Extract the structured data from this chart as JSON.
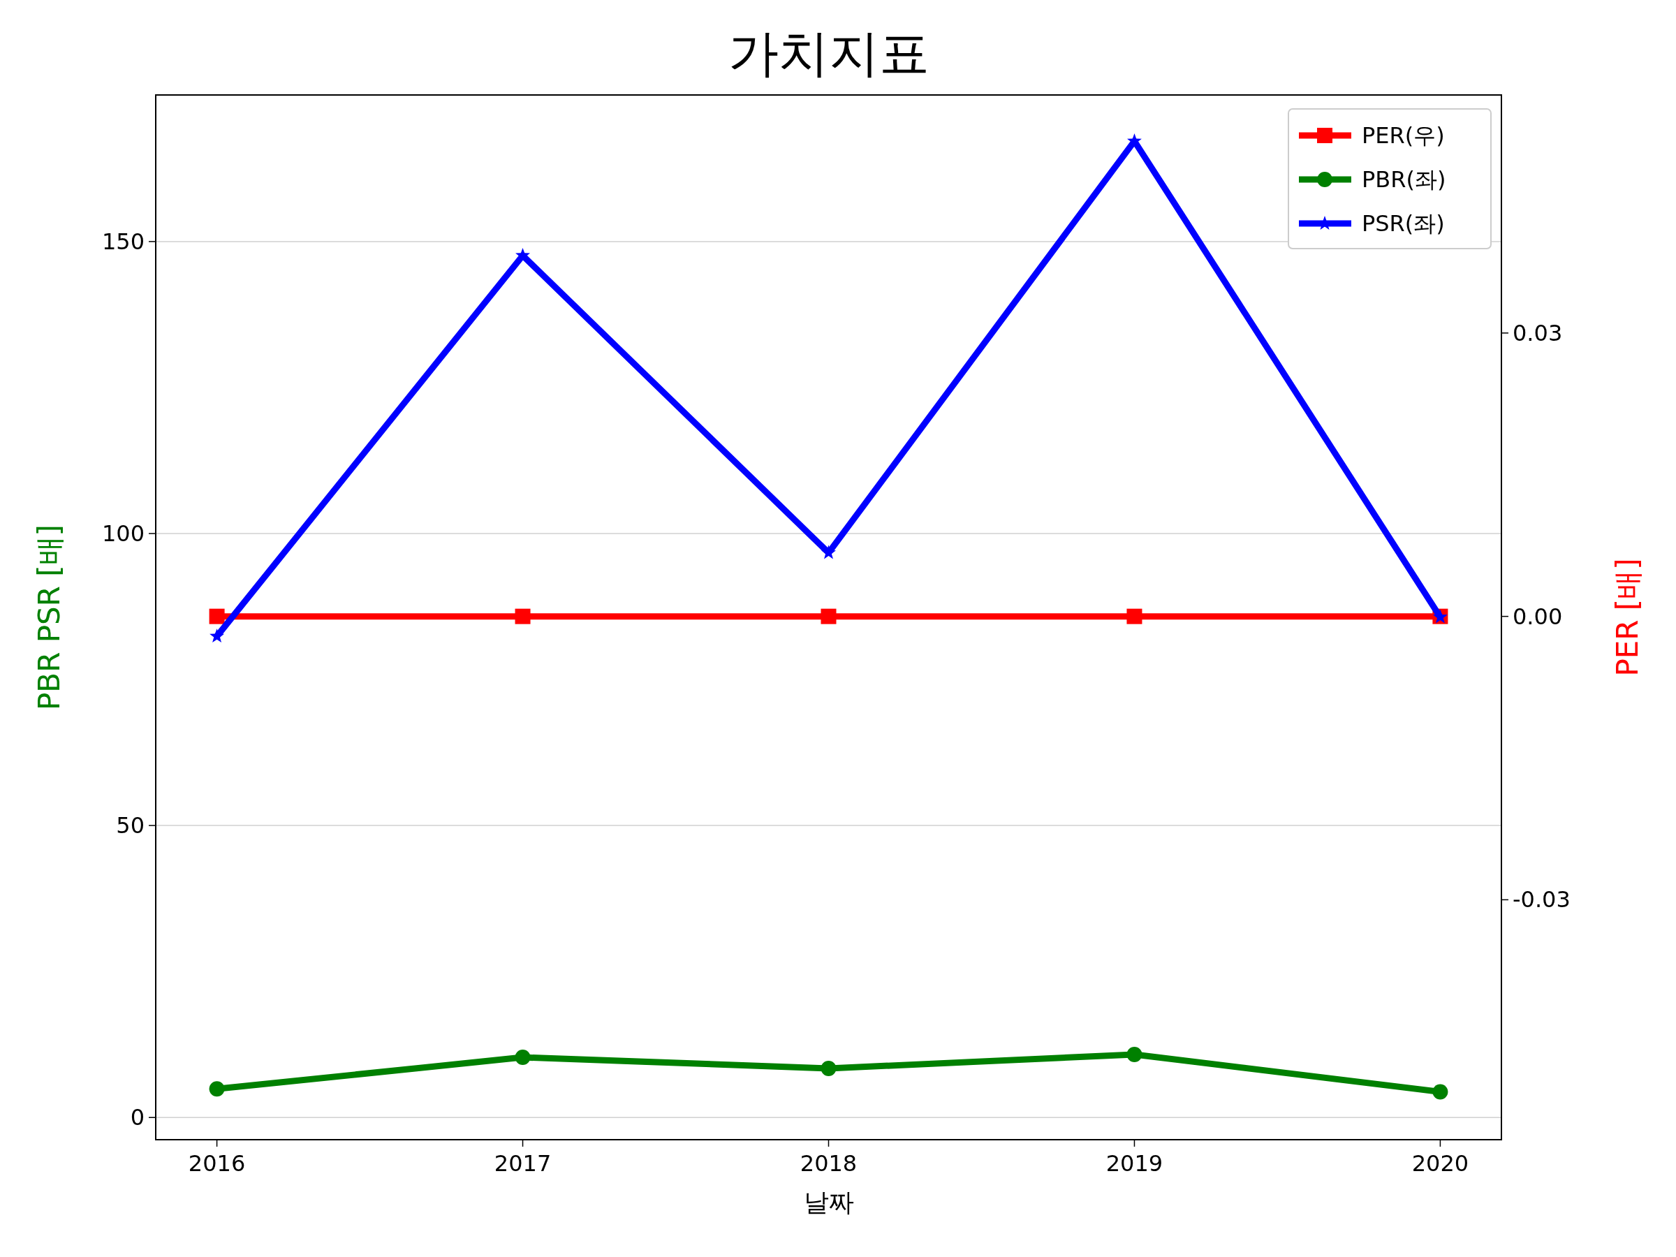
{
  "chart_data": {
    "type": "line",
    "title": "가치지표",
    "xlabel": "날짜",
    "ylabel": "PBR PSR [배]",
    "y2label": "PER [배]",
    "x": [
      2016,
      2017,
      2018,
      2019,
      2020
    ],
    "series": [
      {
        "name": "PER(우)",
        "color": "#ff0000",
        "values": [
          0,
          0,
          0,
          0,
          0
        ],
        "axis": "y2",
        "marker": "square"
      },
      {
        "name": "PBR(좌)",
        "color": "#008000",
        "values": [
          4.9,
          10.3,
          8.4,
          10.8,
          4.4
        ],
        "marker": "circle"
      },
      {
        "name": "PSR(좌)",
        "color": "#0000ff",
        "values": [
          82.4,
          147.6,
          96.7,
          167.2,
          85.7
        ],
        "marker": "star"
      }
    ],
    "xlim": [
      2015.8,
      2020.2
    ],
    "xticks": [
      2016,
      2017,
      2018,
      2019,
      2020
    ],
    "ylim": [
      -3.8,
      175.1
    ],
    "yticks": [
      0,
      50,
      100,
      150
    ],
    "y2lim": [
      -0.0554,
      0.0552
    ],
    "y2ticks": [
      {
        "value": -0.03,
        "label": "-0.03"
      },
      {
        "value": 0,
        "label": "0.00"
      },
      {
        "value": 0.03,
        "label": "0.03"
      }
    ],
    "grid": "y",
    "legend": "top right",
    "line_style": "solid"
  }
}
